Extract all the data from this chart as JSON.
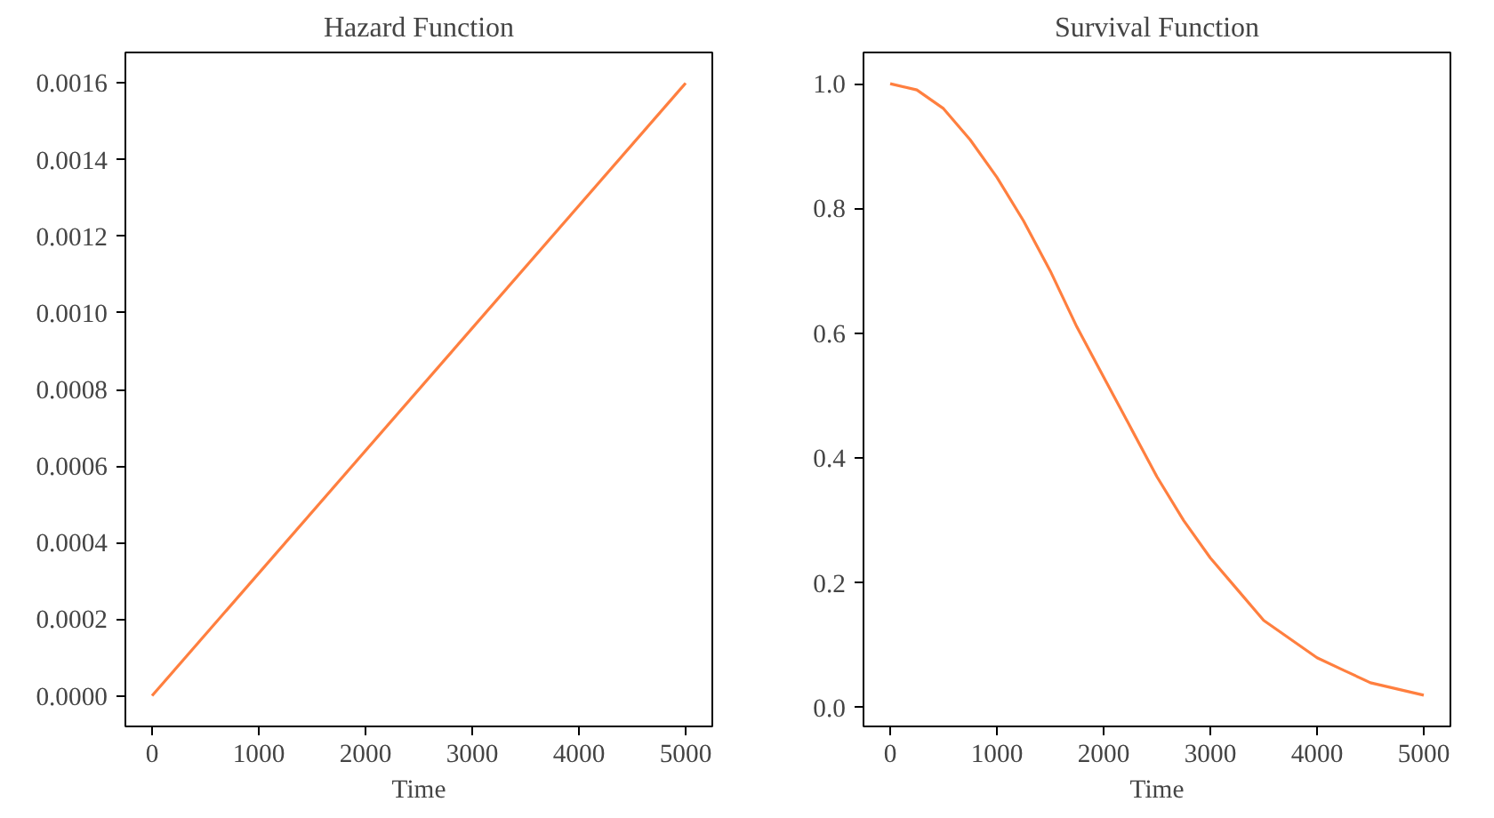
{
  "chart_data": [
    {
      "type": "line",
      "title": "Hazard Function",
      "xlabel": "Time",
      "x": [
        0,
        5000
      ],
      "series": [
        {
          "color": "#ff7f3f",
          "values": [
            0,
            0.0016
          ]
        }
      ],
      "xlim": [
        -250,
        5250
      ],
      "ylim": [
        -8e-05,
        0.00168
      ],
      "xticks": [
        0,
        1000,
        2000,
        3000,
        4000,
        5000
      ],
      "yticks": [
        {
          "value": 0,
          "label": "0.0000"
        },
        {
          "value": 0.0002,
          "label": "0.0002"
        },
        {
          "value": 0.0004,
          "label": "0.0004"
        },
        {
          "value": 0.0006,
          "label": "0.0006"
        },
        {
          "value": 0.0008,
          "label": "0.0008"
        },
        {
          "value": 0.001,
          "label": "0.0010"
        },
        {
          "value": 0.0012,
          "label": "0.0012"
        },
        {
          "value": 0.0014,
          "label": "0.0014"
        },
        {
          "value": 0.0016,
          "label": "0.0016"
        }
      ],
      "grid": false,
      "marker": "none",
      "line_style": "solid"
    },
    {
      "type": "line",
      "title": "Survival Function",
      "xlabel": "Time",
      "x": [
        0,
        250,
        500,
        750,
        1000,
        1250,
        1500,
        1750,
        2000,
        2250,
        2500,
        2750,
        3000,
        3250,
        3500,
        3750,
        4000,
        4250,
        4500,
        4750,
        5000
      ],
      "series": [
        {
          "color": "#ff7f3f",
          "values": [
            1.0,
            0.99,
            0.96,
            0.91,
            0.85,
            0.78,
            0.7,
            0.61,
            0.53,
            0.45,
            0.37,
            0.3,
            0.24,
            0.19,
            0.14,
            0.11,
            0.08,
            0.06,
            0.04,
            0.03,
            0.02
          ]
        }
      ],
      "xlim": [
        -250,
        5250
      ],
      "ylim": [
        -0.03,
        1.05
      ],
      "xticks": [
        0,
        1000,
        2000,
        3000,
        4000,
        5000
      ],
      "yticks": [
        {
          "value": 0,
          "label": "0.0"
        },
        {
          "value": 0.2,
          "label": "0.2"
        },
        {
          "value": 0.4,
          "label": "0.4"
        },
        {
          "value": 0.6,
          "label": "0.6"
        },
        {
          "value": 0.8,
          "label": "0.8"
        },
        {
          "value": 1.0,
          "label": "1.0"
        }
      ],
      "grid": false,
      "marker": "none",
      "line_style": "solid"
    }
  ]
}
